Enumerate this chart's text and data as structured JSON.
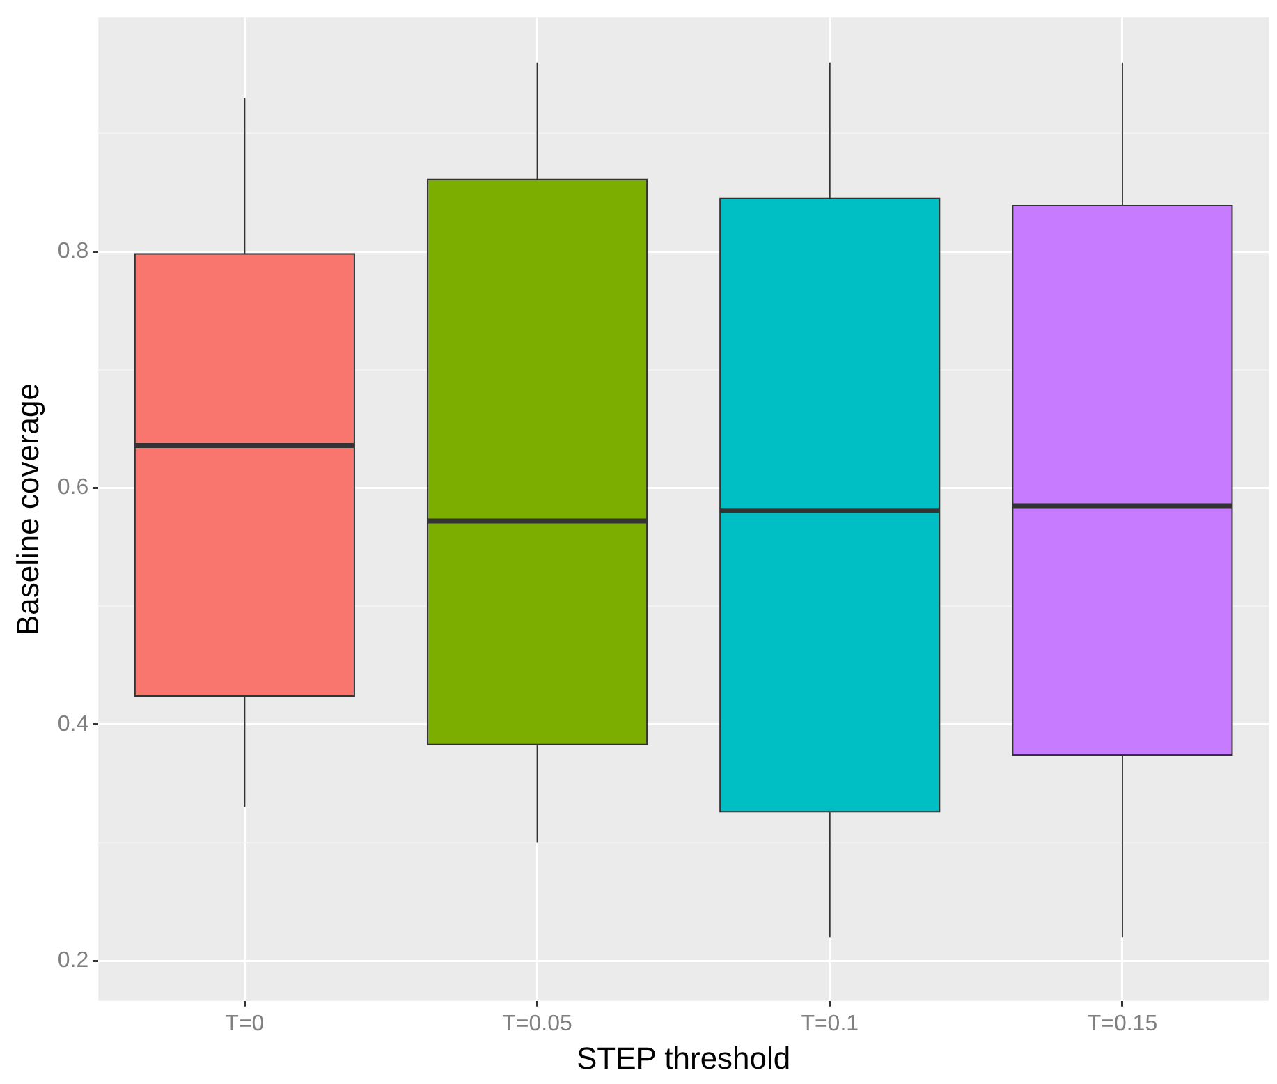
{
  "chart_data": {
    "type": "box",
    "xlabel": "STEP threshold",
    "ylabel": "Baseline coverage",
    "categories": [
      "T=0",
      "T=0.05",
      "T=0.1",
      "T=0.15"
    ],
    "colors": [
      "#f8766d",
      "#7cae00",
      "#00bfc4",
      "#c77cff"
    ],
    "boxes": [
      {
        "low": 0.33,
        "q1": 0.424,
        "median": 0.636,
        "q3": 0.798,
        "high": 0.93
      },
      {
        "low": 0.3,
        "q1": 0.383,
        "median": 0.572,
        "q3": 0.861,
        "high": 0.96
      },
      {
        "low": 0.22,
        "q1": 0.326,
        "median": 0.581,
        "q3": 0.845,
        "high": 0.96
      },
      {
        "low": 0.22,
        "q1": 0.374,
        "median": 0.585,
        "q3": 0.839,
        "high": 0.96
      }
    ],
    "ylim": [
      0.166,
      0.998
    ],
    "yticks": [
      0.2,
      {
        "value": 0.3,
        "label": null
      },
      0.4,
      {
        "value": 0.5,
        "label": null
      },
      0.6,
      {
        "value": 0.7,
        "label": null
      },
      0.8,
      {
        "value": 0.9,
        "label": null
      }
    ],
    "grid": true,
    "legend": false
  }
}
